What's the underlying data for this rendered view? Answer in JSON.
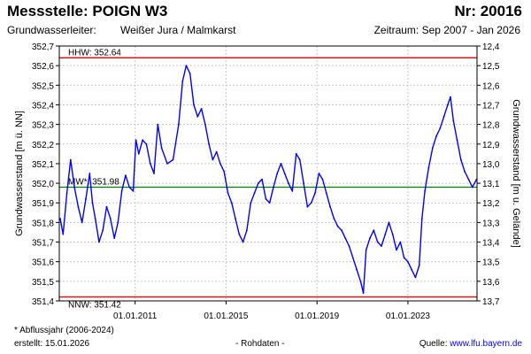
{
  "header": {
    "title": "Messstelle: POIGN W3",
    "nr": "Nr: 20016",
    "aquifer_label": "Grundwasserleiter:",
    "aquifer_value": "Weißer Jura / Malmkarst",
    "period": "Zeitraum: Sep 2007 - Jan 2026"
  },
  "footer": {
    "note": "* Abflussjahr (2006-2024)",
    "created": "erstellt:  15.01.2026",
    "rawdata": "- Rohdaten -",
    "source_label": "Quelle: ",
    "source_link": "www.lfu.bayern.de"
  },
  "colors": {
    "series": "#0000ff",
    "extreme_lines": "#ff0000",
    "mean_line": "#008000",
    "grid": "#c8c8c8",
    "frame": "#000000"
  },
  "chart_data": {
    "type": "line",
    "title": "",
    "xlabel": "",
    "ylabel": "Grundwasserstand [m ü. NN]",
    "ylabel_right": "Grundwasserstand [m u. Gelände]",
    "xlim": [
      "2007-09-01",
      "2026-01-15"
    ],
    "ylim": [
      351.4,
      352.7
    ],
    "y2lim": [
      13.7,
      12.4
    ],
    "y_ticks": [
      "351,4",
      "351,5",
      "351,6",
      "351,7",
      "351,8",
      "351,9",
      "352,0",
      "352,1",
      "352,2",
      "352,3",
      "352,4",
      "352,5",
      "352,6",
      "352,7"
    ],
    "y2_ticks": [
      "13,7",
      "13,6",
      "13,5",
      "13,4",
      "13,3",
      "13,2",
      "13,1",
      "13,0",
      "12,9",
      "12,8",
      "12,7",
      "12,6",
      "12,5",
      "12,4"
    ],
    "x_ticks": [
      {
        "date": "2011-01-01",
        "label": "01.01.2011"
      },
      {
        "date": "2015-01-01",
        "label": "01.01.2015"
      },
      {
        "date": "2019-01-01",
        "label": "01.01.2019"
      },
      {
        "date": "2023-01-01",
        "label": "01.01.2023"
      }
    ],
    "grid": true,
    "reference_lines": [
      {
        "name": "HHW",
        "label": "HHW: 352.64",
        "value": 352.64,
        "color": "#ff0000"
      },
      {
        "name": "MW",
        "label": "MW*: 351.98",
        "value": 351.98,
        "color": "#008000"
      },
      {
        "name": "NNW",
        "label": "NNW: 351.42",
        "value": 351.42,
        "color": "#ff0000"
      }
    ],
    "series": [
      {
        "color": "#0000ff",
        "points": [
          [
            "2007-09-15",
            351.82
          ],
          [
            "2007-11-01",
            351.74
          ],
          [
            "2008-01-01",
            351.95
          ],
          [
            "2008-03-01",
            352.12
          ],
          [
            "2008-05-01",
            351.98
          ],
          [
            "2008-07-01",
            351.88
          ],
          [
            "2008-09-01",
            351.8
          ],
          [
            "2008-11-01",
            351.92
          ],
          [
            "2009-01-01",
            352.05
          ],
          [
            "2009-02-15",
            351.9
          ],
          [
            "2009-04-01",
            351.82
          ],
          [
            "2009-06-01",
            351.7
          ],
          [
            "2009-08-01",
            351.76
          ],
          [
            "2009-10-01",
            351.88
          ],
          [
            "2009-12-01",
            351.82
          ],
          [
            "2010-02-01",
            351.72
          ],
          [
            "2010-04-01",
            351.8
          ],
          [
            "2010-06-01",
            351.96
          ],
          [
            "2010-08-01",
            352.04
          ],
          [
            "2010-10-01",
            351.98
          ],
          [
            "2010-12-01",
            351.96
          ],
          [
            "2011-01-15",
            352.22
          ],
          [
            "2011-03-01",
            352.15
          ],
          [
            "2011-05-01",
            352.22
          ],
          [
            "2011-07-01",
            352.2
          ],
          [
            "2011-09-01",
            352.1
          ],
          [
            "2011-11-01",
            352.05
          ],
          [
            "2012-01-01",
            352.3
          ],
          [
            "2012-03-01",
            352.18
          ],
          [
            "2012-06-01",
            352.1
          ],
          [
            "2012-09-01",
            352.12
          ],
          [
            "2012-12-01",
            352.3
          ],
          [
            "2013-02-01",
            352.52
          ],
          [
            "2013-04-01",
            352.6
          ],
          [
            "2013-06-01",
            352.56
          ],
          [
            "2013-08-01",
            352.4
          ],
          [
            "2013-10-01",
            352.34
          ],
          [
            "2013-12-01",
            352.38
          ],
          [
            "2014-02-01",
            352.3
          ],
          [
            "2014-04-01",
            352.2
          ],
          [
            "2014-06-01",
            352.12
          ],
          [
            "2014-08-01",
            352.16
          ],
          [
            "2014-10-01",
            352.1
          ],
          [
            "2014-12-01",
            352.06
          ],
          [
            "2015-02-01",
            351.95
          ],
          [
            "2015-04-01",
            351.9
          ],
          [
            "2015-06-01",
            351.82
          ],
          [
            "2015-08-01",
            351.74
          ],
          [
            "2015-10-01",
            351.7
          ],
          [
            "2015-12-01",
            351.76
          ],
          [
            "2016-02-01",
            351.9
          ],
          [
            "2016-04-01",
            351.95
          ],
          [
            "2016-06-01",
            352.0
          ],
          [
            "2016-08-01",
            352.02
          ],
          [
            "2016-10-01",
            351.92
          ],
          [
            "2016-12-01",
            351.9
          ],
          [
            "2017-02-01",
            351.98
          ],
          [
            "2017-04-01",
            352.05
          ],
          [
            "2017-06-01",
            352.1
          ],
          [
            "2017-08-01",
            352.05
          ],
          [
            "2017-10-01",
            352.0
          ],
          [
            "2017-12-01",
            351.96
          ],
          [
            "2018-02-01",
            352.15
          ],
          [
            "2018-04-01",
            352.12
          ],
          [
            "2018-06-01",
            352.0
          ],
          [
            "2018-08-01",
            351.88
          ],
          [
            "2018-10-01",
            351.9
          ],
          [
            "2018-12-01",
            351.95
          ],
          [
            "2019-02-01",
            352.05
          ],
          [
            "2019-04-01",
            352.02
          ],
          [
            "2019-06-01",
            351.95
          ],
          [
            "2019-08-01",
            351.88
          ],
          [
            "2019-10-01",
            351.82
          ],
          [
            "2019-12-01",
            351.78
          ],
          [
            "2020-02-01",
            351.76
          ],
          [
            "2020-04-01",
            351.72
          ],
          [
            "2020-06-01",
            351.68
          ],
          [
            "2020-08-01",
            351.62
          ],
          [
            "2020-10-01",
            351.56
          ],
          [
            "2020-12-01",
            351.5
          ],
          [
            "2021-01-15",
            351.44
          ],
          [
            "2021-03-01",
            351.66
          ],
          [
            "2021-05-01",
            351.72
          ],
          [
            "2021-07-01",
            351.76
          ],
          [
            "2021-09-01",
            351.7
          ],
          [
            "2021-11-01",
            351.68
          ],
          [
            "2022-01-01",
            351.74
          ],
          [
            "2022-03-01",
            351.8
          ],
          [
            "2022-05-01",
            351.74
          ],
          [
            "2022-07-01",
            351.66
          ],
          [
            "2022-09-01",
            351.7
          ],
          [
            "2022-11-01",
            351.62
          ],
          [
            "2023-01-01",
            351.6
          ],
          [
            "2023-03-01",
            351.56
          ],
          [
            "2023-05-01",
            351.52
          ],
          [
            "2023-07-01",
            351.58
          ],
          [
            "2023-08-15",
            351.82
          ],
          [
            "2023-10-01",
            351.96
          ],
          [
            "2023-12-01",
            352.08
          ],
          [
            "2024-02-01",
            352.18
          ],
          [
            "2024-04-01",
            352.24
          ],
          [
            "2024-06-01",
            352.28
          ],
          [
            "2024-08-01",
            352.34
          ],
          [
            "2024-10-01",
            352.4
          ],
          [
            "2024-11-15",
            352.44
          ],
          [
            "2025-01-01",
            352.32
          ],
          [
            "2025-03-01",
            352.22
          ],
          [
            "2025-05-01",
            352.12
          ],
          [
            "2025-07-01",
            352.06
          ],
          [
            "2025-09-01",
            352.02
          ],
          [
            "2025-11-01",
            351.98
          ],
          [
            "2026-01-10",
            352.02
          ]
        ]
      }
    ]
  }
}
